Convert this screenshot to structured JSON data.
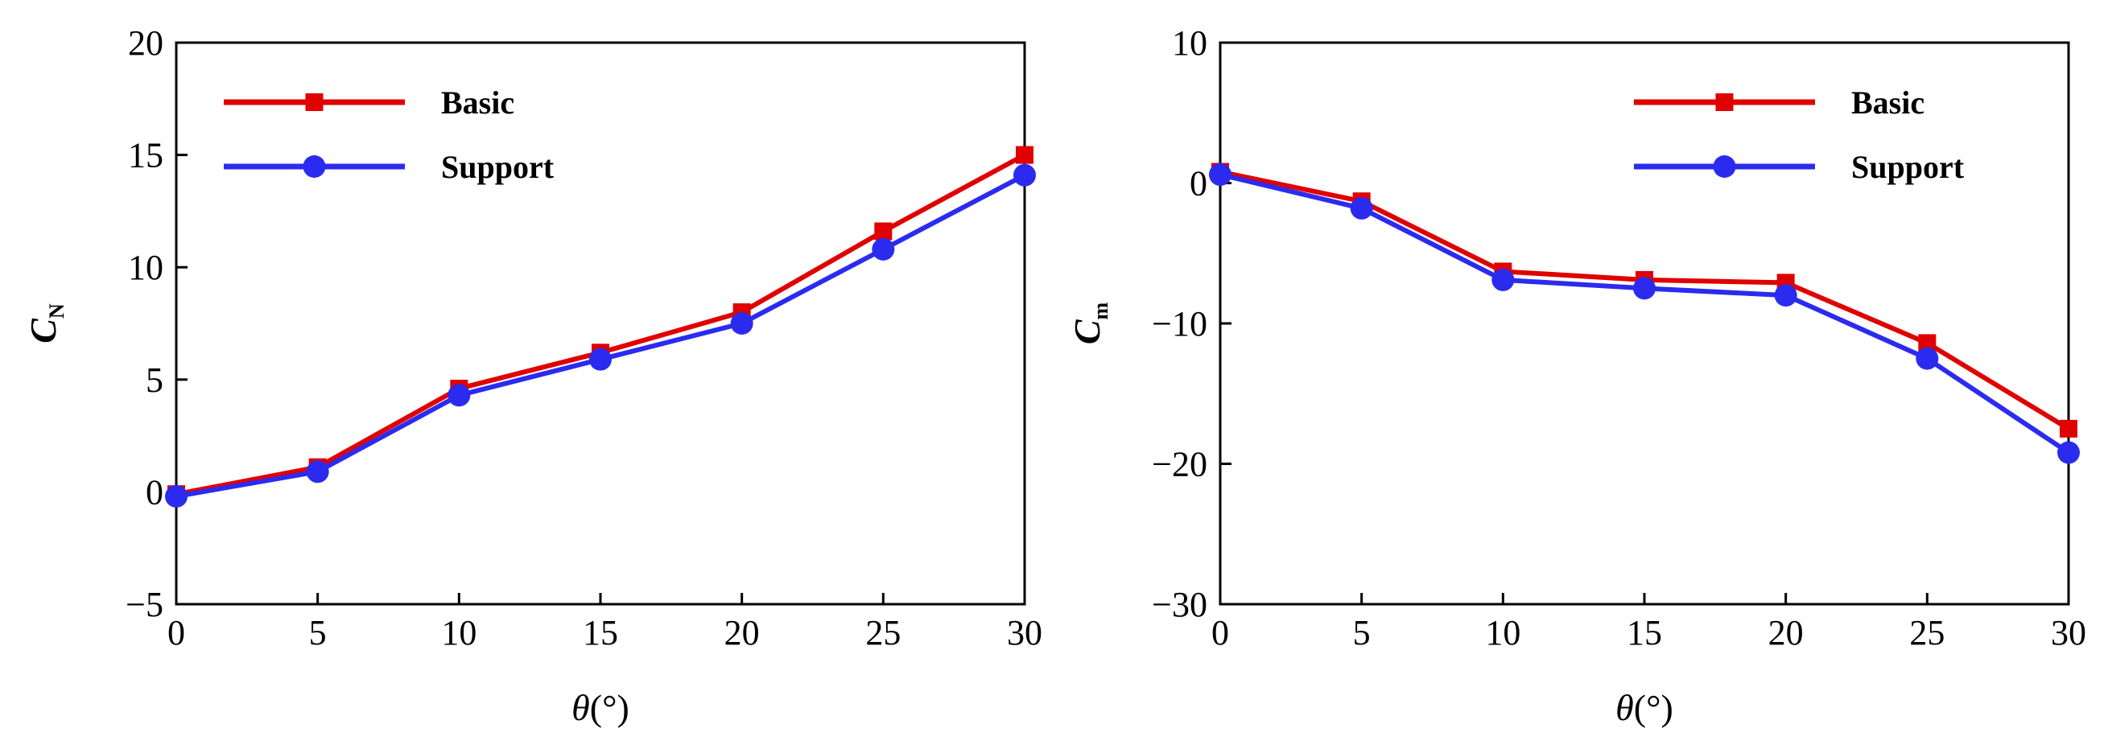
{
  "chart_data": [
    {
      "type": "line",
      "x": [
        0,
        5,
        10,
        15,
        20,
        25,
        30
      ],
      "xlim": [
        0,
        30
      ],
      "ylim": [
        -5,
        20
      ],
      "xticks": [
        0,
        5,
        10,
        15,
        20,
        25,
        30
      ],
      "xtick_labels": [
        "0",
        "5",
        "10",
        "15",
        "20",
        "25",
        "30"
      ],
      "yticks": [
        -5,
        0,
        5,
        10,
        15,
        20
      ],
      "ytick_labels": [
        "−5",
        "0",
        "5",
        "10",
        "15",
        "20"
      ],
      "xlabel": {
        "var": "θ",
        "unit": "(°)"
      },
      "ylabel": {
        "var": "C",
        "sub": "N"
      },
      "legend": "top-left",
      "grid": false,
      "series": [
        {
          "name": "Basic",
          "color": "#e00000",
          "marker": "square",
          "values": [
            -0.1,
            1.1,
            4.6,
            6.2,
            8.0,
            11.6,
            15.0
          ]
        },
        {
          "name": "Support",
          "color": "#2b2bf0",
          "marker": "circle",
          "values": [
            -0.2,
            0.9,
            4.3,
            5.9,
            7.5,
            10.8,
            14.1
          ]
        }
      ]
    },
    {
      "type": "line",
      "x": [
        0,
        5,
        10,
        15,
        20,
        25,
        30
      ],
      "xlim": [
        0,
        30
      ],
      "ylim": [
        -30,
        10
      ],
      "xticks": [
        0,
        5,
        10,
        15,
        20,
        25,
        30
      ],
      "xtick_labels": [
        "0",
        "5",
        "10",
        "15",
        "20",
        "25",
        "30"
      ],
      "yticks": [
        -30,
        -20,
        -10,
        0,
        10
      ],
      "ytick_labels": [
        "−30",
        "−20",
        "−10",
        "0",
        "10"
      ],
      "xlabel": {
        "var": "θ",
        "unit": "(°)"
      },
      "ylabel": {
        "var": "C",
        "sub": "m"
      },
      "legend": "top-right",
      "grid": false,
      "series": [
        {
          "name": "Basic",
          "color": "#e00000",
          "marker": "square",
          "values": [
            0.8,
            -1.3,
            -6.3,
            -6.9,
            -7.1,
            -11.4,
            -17.5
          ]
        },
        {
          "name": "Support",
          "color": "#2b2bf0",
          "marker": "circle",
          "values": [
            0.6,
            -1.8,
            -6.9,
            -7.5,
            -8.0,
            -12.5,
            -19.2
          ]
        }
      ]
    }
  ]
}
